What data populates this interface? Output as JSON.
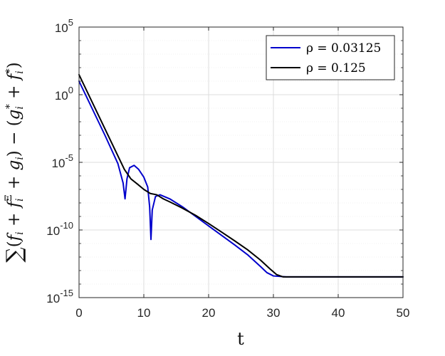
{
  "chart_data": {
    "type": "line",
    "title": "",
    "xlabel": "t",
    "ylabel": "∑(f_i + f_i^Ξ + g_i) − (g_i^* + f_i^*)",
    "xlim": [
      0,
      50
    ],
    "ylim": [
      1e-15,
      100000.0
    ],
    "yscale": "log",
    "grid": true,
    "minor_grid": true,
    "legend_position": "top-right",
    "x_ticks": [
      "0",
      "10",
      "20",
      "30",
      "40",
      "50"
    ],
    "y_ticks": [
      {
        "base": "10",
        "exp": "-15"
      },
      {
        "base": "10",
        "exp": "-10"
      },
      {
        "base": "10",
        "exp": "-5"
      },
      {
        "base": "10",
        "exp": "0"
      },
      {
        "base": "10",
        "exp": "5"
      }
    ],
    "series": [
      {
        "name": "ρ = 0.03125",
        "color": "#0000cc",
        "points": [
          [
            0,
            10
          ],
          [
            2,
            0.1
          ],
          [
            4,
            0.001
          ],
          [
            6,
            8e-06
          ],
          [
            6.8,
            3e-07
          ],
          [
            7.1,
            2e-08
          ],
          [
            7.4,
            6e-07
          ],
          [
            7.8,
            4e-06
          ],
          [
            8.5,
            6e-06
          ],
          [
            9.2,
            3e-06
          ],
          [
            10,
            8e-07
          ],
          [
            10.6,
            1.5e-07
          ],
          [
            10.9,
            5e-09
          ],
          [
            11.1,
            2e-11
          ],
          [
            11.3,
            3e-09
          ],
          [
            11.8,
            3e-08
          ],
          [
            12.5,
            4e-08
          ],
          [
            14,
            2e-08
          ],
          [
            16,
            5e-09
          ],
          [
            18,
            1e-09
          ],
          [
            20,
            2e-10
          ],
          [
            22,
            4e-11
          ],
          [
            24,
            8e-12
          ],
          [
            26,
            1.5e-12
          ],
          [
            28,
            2e-13
          ],
          [
            29,
            7e-14
          ],
          [
            30,
            4e-14
          ],
          [
            32,
            3.4e-14
          ],
          [
            50,
            3.4e-14
          ]
        ]
      },
      {
        "name": "ρ = 0.125",
        "color": "#000000",
        "points": [
          [
            0,
            30
          ],
          [
            2,
            0.3
          ],
          [
            4,
            0.003
          ],
          [
            6,
            3e-05
          ],
          [
            7,
            3e-06
          ],
          [
            8,
            6e-07
          ],
          [
            9,
            2.5e-07
          ],
          [
            10,
            1e-07
          ],
          [
            11,
            5e-08
          ],
          [
            12,
            4e-08
          ],
          [
            13,
            2e-08
          ],
          [
            14,
            1.2e-08
          ],
          [
            16,
            4e-09
          ],
          [
            18,
            1.2e-09
          ],
          [
            20,
            3e-10
          ],
          [
            22,
            7e-11
          ],
          [
            24,
            1.6e-11
          ],
          [
            26,
            3.5e-12
          ],
          [
            28,
            6e-13
          ],
          [
            29.5,
            1.3e-13
          ],
          [
            30.5,
            5e-14
          ],
          [
            31.5,
            3.4e-14
          ],
          [
            34,
            3.4e-14
          ],
          [
            50,
            3.4e-14
          ]
        ]
      }
    ]
  }
}
